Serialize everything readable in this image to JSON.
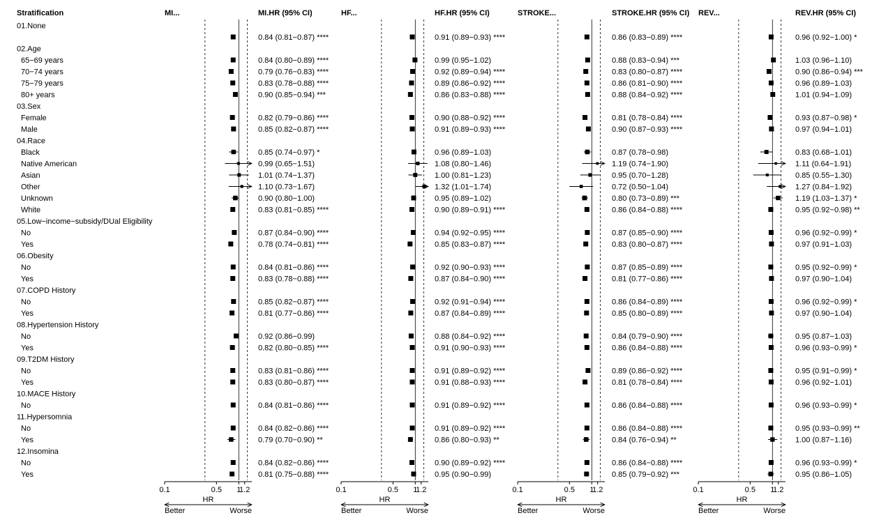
{
  "chart_data": {
    "type": "forest",
    "strat_header": "Stratification",
    "scale_label": "HR",
    "better_label": "Better",
    "worse_label": "Worse",
    "ticks": [
      0.1,
      0.5,
      1,
      1.2
    ],
    "tick_labels": [
      "0.1",
      "0.5",
      "1",
      "1.2"
    ],
    "panels": [
      {
        "title": "MI...",
        "ci_header": "MI.HR (95% CI)"
      },
      {
        "title": "HF...",
        "ci_header": "HF.HR (95% CI)"
      },
      {
        "title": "STROKE...",
        "ci_header": "STROKE.HR (95% CI)"
      },
      {
        "title": "REV...",
        "ci_header": "REV.HR (95% CI)"
      }
    ],
    "rows": [
      {
        "label": "01.None",
        "group": true
      },
      {
        "label": "",
        "vals": [
          [
            0.84,
            0.81,
            0.87
          ],
          [
            0.91,
            0.89,
            0.93
          ],
          [
            0.86,
            0.83,
            0.89
          ],
          [
            0.96,
            0.92,
            1.0
          ]
        ],
        "texts": [
          "0.84 (0.81−0.87) ****",
          "0.91 (0.89−0.93) ****",
          "0.86 (0.83−0.89) ****",
          "0.96 (0.92−1.00) *"
        ]
      },
      {
        "label": "02.Age",
        "group": true
      },
      {
        "label": "65−69 years",
        "vals": [
          [
            0.84,
            0.8,
            0.89
          ],
          [
            0.99,
            0.95,
            1.02
          ],
          [
            0.88,
            0.83,
            0.94
          ],
          [
            1.03,
            0.96,
            1.1
          ]
        ],
        "texts": [
          "0.84 (0.80−0.89) ****",
          "0.99 (0.95−1.02)",
          "0.88 (0.83−0.94) ***",
          "1.03 (0.96−1.10)"
        ]
      },
      {
        "label": "70−74 years",
        "vals": [
          [
            0.79,
            0.76,
            0.83
          ],
          [
            0.92,
            0.89,
            0.94
          ],
          [
            0.83,
            0.8,
            0.87
          ],
          [
            0.9,
            0.86,
            0.94
          ]
        ],
        "texts": [
          "0.79 (0.76−0.83) ****",
          "0.92 (0.89−0.94) ****",
          "0.83 (0.80−0.87) ****",
          "0.90 (0.86−0.94) ***"
        ]
      },
      {
        "label": "75−79 years",
        "vals": [
          [
            0.83,
            0.78,
            0.88
          ],
          [
            0.89,
            0.86,
            0.92
          ],
          [
            0.86,
            0.81,
            0.9
          ],
          [
            0.96,
            0.89,
            1.03
          ]
        ],
        "texts": [
          "0.83 (0.78−0.88) ****",
          "0.89 (0.86−0.92) ****",
          "0.86 (0.81−0.90) ****",
          "0.96 (0.89−1.03)"
        ]
      },
      {
        "label": "80+ years",
        "vals": [
          [
            0.9,
            0.85,
            0.94
          ],
          [
            0.86,
            0.83,
            0.88
          ],
          [
            0.88,
            0.84,
            0.92
          ],
          [
            1.01,
            0.94,
            1.09
          ]
        ],
        "texts": [
          "0.90 (0.85−0.94) ***",
          "0.86 (0.83−0.88) ****",
          "0.88 (0.84−0.92) ****",
          "1.01 (0.94−1.09)"
        ]
      },
      {
        "label": "03.Sex",
        "group": true
      },
      {
        "label": "Female",
        "vals": [
          [
            0.82,
            0.79,
            0.86
          ],
          [
            0.9,
            0.88,
            0.92
          ],
          [
            0.81,
            0.78,
            0.84
          ],
          [
            0.93,
            0.87,
            0.98
          ]
        ],
        "texts": [
          "0.82 (0.79−0.86) ****",
          "0.90 (0.88−0.92) ****",
          "0.81 (0.78−0.84) ****",
          "0.93 (0.87−0.98) *"
        ]
      },
      {
        "label": "Male",
        "vals": [
          [
            0.85,
            0.82,
            0.87
          ],
          [
            0.91,
            0.89,
            0.93
          ],
          [
            0.9,
            0.87,
            0.93
          ],
          [
            0.97,
            0.94,
            1.01
          ]
        ],
        "texts": [
          "0.85 (0.82−0.87) ****",
          "0.91 (0.89−0.93) ****",
          "0.90 (0.87−0.93) ****",
          "0.97 (0.94−1.01)"
        ]
      },
      {
        "label": "04.Race",
        "group": true
      },
      {
        "label": "Black",
        "vals": [
          [
            0.85,
            0.74,
            0.97
          ],
          [
            0.96,
            0.89,
            1.03
          ],
          [
            0.87,
            0.78,
            0.98
          ],
          [
            0.83,
            0.68,
            1.01
          ]
        ],
        "texts": [
          "0.85 (0.74−0.97) *",
          "0.96 (0.89−1.03)",
          "0.87 (0.78−0.98)",
          "0.83 (0.68−1.01)"
        ]
      },
      {
        "label": "Native American",
        "vals": [
          [
            0.99,
            0.65,
            1.51
          ],
          [
            1.08,
            0.8,
            1.46
          ],
          [
            1.19,
            0.74,
            1.9
          ],
          [
            1.11,
            0.64,
            1.91
          ]
        ],
        "texts": [
          "0.99 (0.65−1.51)",
          "1.08 (0.80−1.46)",
          "1.19 (0.74−1.90)",
          "1.11 (0.64−1.91)"
        ]
      },
      {
        "label": "Asian",
        "vals": [
          [
            1.01,
            0.74,
            1.37
          ],
          [
            1.0,
            0.81,
            1.23
          ],
          [
            0.95,
            0.7,
            1.28
          ],
          [
            0.85,
            0.55,
            1.3
          ]
        ],
        "texts": [
          "1.01 (0.74−1.37)",
          "1.00 (0.81−1.23)",
          "0.95 (0.70−1.28)",
          "0.85 (0.55−1.30)"
        ]
      },
      {
        "label": "Other",
        "vals": [
          [
            1.1,
            0.73,
            1.67
          ],
          [
            1.32,
            1.01,
            1.74
          ],
          [
            0.72,
            0.5,
            1.04
          ],
          [
            1.27,
            0.84,
            1.92
          ]
        ],
        "texts": [
          "1.10 (0.73−1.67)",
          "1.32 (1.01−1.74)",
          "0.72 (0.50−1.04)",
          "1.27 (0.84−1.92)"
        ]
      },
      {
        "label": "Unknown",
        "vals": [
          [
            0.9,
            0.8,
            1.0
          ],
          [
            0.95,
            0.89,
            1.02
          ],
          [
            0.8,
            0.73,
            0.89
          ],
          [
            1.19,
            1.03,
            1.37
          ]
        ],
        "texts": [
          "0.90 (0.80−1.00)",
          "0.95 (0.89−1.02)",
          "0.80 (0.73−0.89) ***",
          "1.19 (1.03−1.37) *"
        ]
      },
      {
        "label": "White",
        "vals": [
          [
            0.83,
            0.81,
            0.85
          ],
          [
            0.9,
            0.89,
            0.91
          ],
          [
            0.86,
            0.84,
            0.88
          ],
          [
            0.95,
            0.92,
            0.98
          ]
        ],
        "texts": [
          "0.83 (0.81−0.85) ****",
          "0.90 (0.89−0.91) ****",
          "0.86 (0.84−0.88) ****",
          "0.95 (0.92−0.98) **"
        ]
      },
      {
        "label": "05.Low−income−subsidy/DUal Eligibility",
        "group": true
      },
      {
        "label": "No",
        "vals": [
          [
            0.87,
            0.84,
            0.9
          ],
          [
            0.94,
            0.92,
            0.95
          ],
          [
            0.87,
            0.85,
            0.9
          ],
          [
            0.96,
            0.92,
            0.99
          ]
        ],
        "texts": [
          "0.87 (0.84−0.90) ****",
          "0.94 (0.92−0.95) ****",
          "0.87 (0.85−0.90) ****",
          "0.96 (0.92−0.99) *"
        ]
      },
      {
        "label": "Yes",
        "vals": [
          [
            0.78,
            0.74,
            0.81
          ],
          [
            0.85,
            0.83,
            0.87
          ],
          [
            0.83,
            0.8,
            0.87
          ],
          [
            0.97,
            0.91,
            1.03
          ]
        ],
        "texts": [
          "0.78 (0.74−0.81) ****",
          "0.85 (0.83−0.87) ****",
          "0.83 (0.80−0.87) ****",
          "0.97 (0.91−1.03)"
        ]
      },
      {
        "label": "06.Obesity",
        "group": true
      },
      {
        "label": "No",
        "vals": [
          [
            0.84,
            0.81,
            0.86
          ],
          [
            0.92,
            0.9,
            0.93
          ],
          [
            0.87,
            0.85,
            0.89
          ],
          [
            0.95,
            0.92,
            0.99
          ]
        ],
        "texts": [
          "0.84 (0.81−0.86) ****",
          "0.92 (0.90−0.93) ****",
          "0.87 (0.85−0.89) ****",
          "0.95 (0.92−0.99) *"
        ]
      },
      {
        "label": "Yes",
        "vals": [
          [
            0.83,
            0.78,
            0.88
          ],
          [
            0.87,
            0.84,
            0.9
          ],
          [
            0.81,
            0.77,
            0.86
          ],
          [
            0.97,
            0.9,
            1.04
          ]
        ],
        "texts": [
          "0.83 (0.78−0.88) ****",
          "0.87 (0.84−0.90) ****",
          "0.81 (0.77−0.86) ****",
          "0.97 (0.90−1.04)"
        ]
      },
      {
        "label": "07.COPD History",
        "group": true
      },
      {
        "label": "No",
        "vals": [
          [
            0.85,
            0.82,
            0.87
          ],
          [
            0.92,
            0.91,
            0.94
          ],
          [
            0.86,
            0.84,
            0.89
          ],
          [
            0.96,
            0.92,
            0.99
          ]
        ],
        "texts": [
          "0.85 (0.82−0.87) ****",
          "0.92 (0.91−0.94) ****",
          "0.86 (0.84−0.89) ****",
          "0.96 (0.92−0.99) *"
        ]
      },
      {
        "label": "Yes",
        "vals": [
          [
            0.81,
            0.77,
            0.86
          ],
          [
            0.87,
            0.84,
            0.89
          ],
          [
            0.85,
            0.8,
            0.89
          ],
          [
            0.97,
            0.9,
            1.04
          ]
        ],
        "texts": [
          "0.81 (0.77−0.86) ****",
          "0.87 (0.84−0.89) ****",
          "0.85 (0.80−0.89) ****",
          "0.97 (0.90−1.04)"
        ]
      },
      {
        "label": "08.Hypertension History",
        "group": true
      },
      {
        "label": "No",
        "vals": [
          [
            0.92,
            0.86,
            0.99
          ],
          [
            0.88,
            0.84,
            0.92
          ],
          [
            0.84,
            0.79,
            0.9
          ],
          [
            0.95,
            0.87,
            1.03
          ]
        ],
        "texts": [
          "0.92 (0.86−0.99)",
          "0.88 (0.84−0.92) ****",
          "0.84 (0.79−0.90) ****",
          "0.95 (0.87−1.03)"
        ]
      },
      {
        "label": "Yes",
        "vals": [
          [
            0.82,
            0.8,
            0.85
          ],
          [
            0.91,
            0.9,
            0.93
          ],
          [
            0.86,
            0.84,
            0.88
          ],
          [
            0.96,
            0.93,
            0.99
          ]
        ],
        "texts": [
          "0.82 (0.80−0.85) ****",
          "0.91 (0.90−0.93) ****",
          "0.86 (0.84−0.88) ****",
          "0.96 (0.93−0.99) *"
        ]
      },
      {
        "label": "09.T2DM History",
        "group": true
      },
      {
        "label": "No",
        "vals": [
          [
            0.83,
            0.81,
            0.86
          ],
          [
            0.91,
            0.89,
            0.92
          ],
          [
            0.89,
            0.86,
            0.92
          ],
          [
            0.95,
            0.91,
            0.99
          ]
        ],
        "texts": [
          "0.83 (0.81−0.86) ****",
          "0.91 (0.89−0.92) ****",
          "0.89 (0.86−0.92) ****",
          "0.95 (0.91−0.99) *"
        ]
      },
      {
        "label": "Yes",
        "vals": [
          [
            0.83,
            0.8,
            0.87
          ],
          [
            0.91,
            0.88,
            0.93
          ],
          [
            0.81,
            0.78,
            0.84
          ],
          [
            0.96,
            0.92,
            1.01
          ]
        ],
        "texts": [
          "0.83 (0.80−0.87) ****",
          "0.91 (0.88−0.93) ****",
          "0.81 (0.78−0.84) ****",
          "0.96 (0.92−1.01)"
        ]
      },
      {
        "label": "10.MACE History",
        "group": true
      },
      {
        "label": "No",
        "vals": [
          [
            0.84,
            0.81,
            0.86
          ],
          [
            0.91,
            0.89,
            0.92
          ],
          [
            0.86,
            0.84,
            0.88
          ],
          [
            0.96,
            0.93,
            0.99
          ]
        ],
        "texts": [
          "0.84 (0.81−0.86) ****",
          "0.91 (0.89−0.92) ****",
          "0.86 (0.84−0.88) ****",
          "0.96 (0.93−0.99) *"
        ]
      },
      {
        "label": "11.Hypersomnia",
        "group": true
      },
      {
        "label": "No",
        "vals": [
          [
            0.84,
            0.82,
            0.86
          ],
          [
            0.91,
            0.89,
            0.92
          ],
          [
            0.86,
            0.84,
            0.88
          ],
          [
            0.95,
            0.93,
            0.99
          ]
        ],
        "texts": [
          "0.84 (0.82−0.86) ****",
          "0.91 (0.89−0.92) ****",
          "0.86 (0.84−0.88) ****",
          "0.95 (0.93−0.99) **"
        ]
      },
      {
        "label": "Yes",
        "vals": [
          [
            0.79,
            0.7,
            0.9
          ],
          [
            0.86,
            0.8,
            0.93
          ],
          [
            0.84,
            0.76,
            0.94
          ],
          [
            1.0,
            0.87,
            1.16
          ]
        ],
        "texts": [
          "0.79 (0.70−0.90) **",
          "0.86 (0.80−0.93) **",
          "0.84 (0.76−0.94) **",
          "1.00 (0.87−1.16)"
        ]
      },
      {
        "label": "12.Insomina",
        "group": true
      },
      {
        "label": "No",
        "vals": [
          [
            0.84,
            0.82,
            0.86
          ],
          [
            0.9,
            0.89,
            0.92
          ],
          [
            0.86,
            0.84,
            0.88
          ],
          [
            0.96,
            0.93,
            0.99
          ]
        ],
        "texts": [
          "0.84 (0.82−0.86) ****",
          "0.90 (0.89−0.92) ****",
          "0.86 (0.84−0.88) ****",
          "0.96 (0.93−0.99) *"
        ]
      },
      {
        "label": "Yes",
        "vals": [
          [
            0.81,
            0.75,
            0.88
          ],
          [
            0.95,
            0.9,
            0.99
          ],
          [
            0.85,
            0.79,
            0.92
          ],
          [
            0.95,
            0.86,
            1.05
          ]
        ],
        "texts": [
          "0.81 (0.75−0.88) ****",
          "0.95 (0.90−0.99)",
          "0.85 (0.79−0.92) ***",
          "0.95 (0.86−1.05)"
        ]
      }
    ]
  }
}
